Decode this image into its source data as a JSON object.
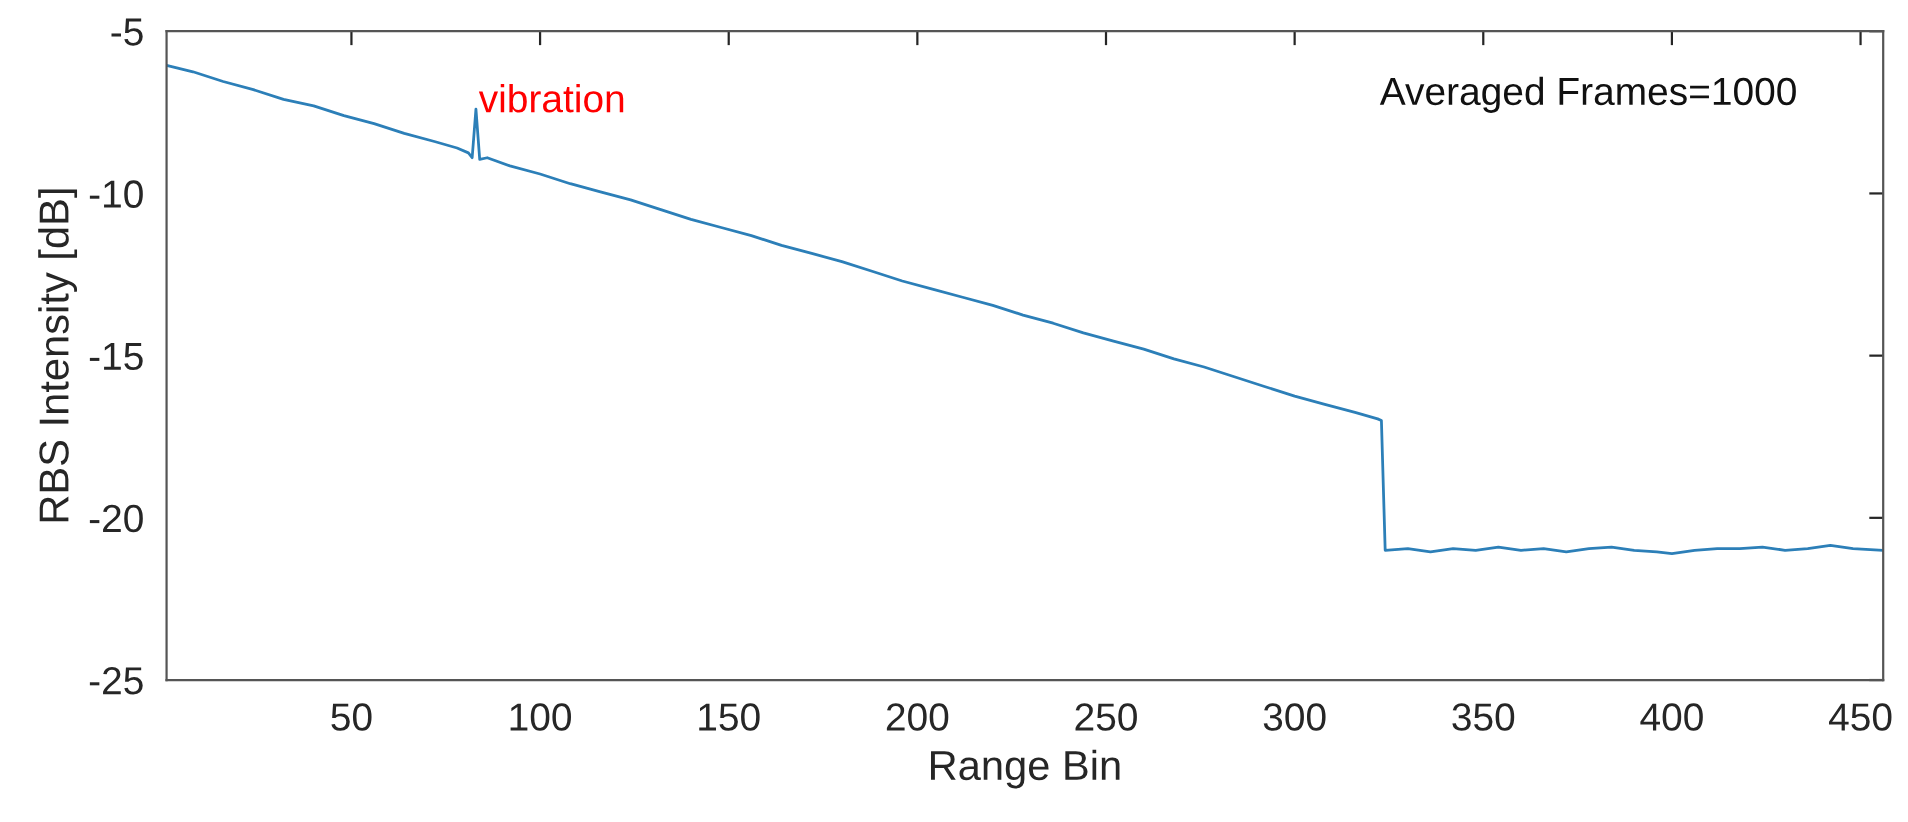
{
  "chart_data": {
    "type": "line",
    "xlabel": "Range Bin",
    "ylabel": "RBS Intensity [dB]",
    "xlim": [
      1,
      456
    ],
    "xticks": [
      50,
      100,
      150,
      200,
      250,
      300,
      350,
      400,
      450
    ],
    "ylim": [
      -25,
      -5
    ],
    "yticks": [
      -25,
      -20,
      -15,
      -10,
      -5
    ],
    "grid": false,
    "marker": "none",
    "line_style": "solid",
    "series": [
      {
        "color": "#2c7fb8",
        "x": [
          1,
          8,
          16,
          24,
          32,
          40,
          48,
          56,
          64,
          72,
          78,
          81,
          82,
          83,
          84,
          86,
          92,
          100,
          108,
          116,
          124,
          132,
          140,
          148,
          156,
          164,
          172,
          180,
          188,
          196,
          204,
          212,
          220,
          228,
          236,
          244,
          252,
          260,
          268,
          276,
          284,
          292,
          300,
          308,
          316,
          322,
          323,
          324,
          330,
          336,
          342,
          348,
          354,
          360,
          366,
          372,
          378,
          384,
          390,
          396,
          400,
          406,
          412,
          418,
          424,
          430,
          436,
          442,
          448,
          456
        ],
        "values": [
          -6.05,
          -6.25,
          -6.55,
          -6.8,
          -7.1,
          -7.3,
          -7.6,
          -7.85,
          -8.15,
          -8.4,
          -8.6,
          -8.75,
          -8.9,
          -7.4,
          -8.95,
          -8.9,
          -9.15,
          -9.4,
          -9.7,
          -9.95,
          -10.2,
          -10.5,
          -10.8,
          -11.05,
          -11.3,
          -11.6,
          -11.85,
          -12.1,
          -12.4,
          -12.7,
          -12.95,
          -13.2,
          -13.45,
          -13.75,
          -14.0,
          -14.3,
          -14.55,
          -14.8,
          -15.1,
          -15.35,
          -15.65,
          -15.95,
          -16.25,
          -16.5,
          -16.75,
          -16.95,
          -17.0,
          -21.0,
          -20.95,
          -21.05,
          -20.95,
          -21.0,
          -20.9,
          -21.0,
          -20.95,
          -21.05,
          -20.95,
          -20.9,
          -21.0,
          -21.05,
          -21.1,
          -21.0,
          -20.95,
          -20.95,
          -20.9,
          -21.0,
          -20.95,
          -20.85,
          -20.95,
          -21.0
        ]
      }
    ],
    "annotations": [
      {
        "text": "vibration",
        "x": 83,
        "y": -7.4
      },
      "Averaged Frames=1000"
    ]
  }
}
